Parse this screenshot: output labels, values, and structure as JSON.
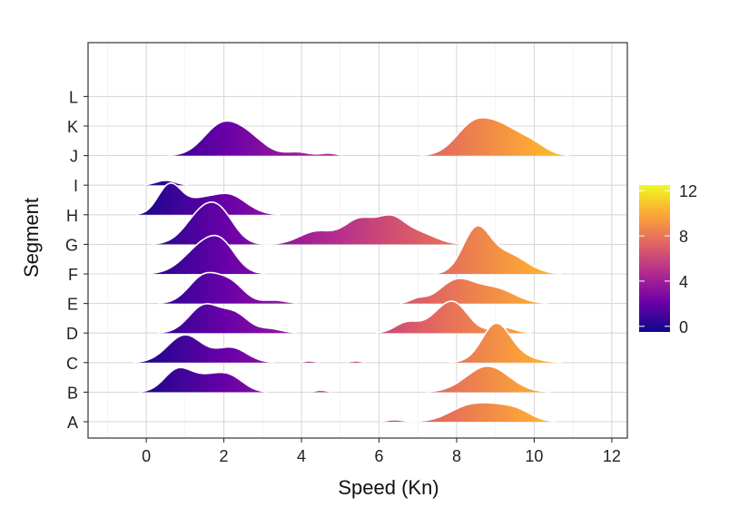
{
  "chart_data": {
    "type": "ridgeline",
    "title": "",
    "xlabel": "Speed (Kn)",
    "ylabel": "Segment",
    "xlim": [
      -1.5,
      12.4
    ],
    "x_ticks": [
      0,
      2,
      4,
      6,
      8,
      10,
      12
    ],
    "grid": true,
    "fill": "gradient by speed (plasma palette)",
    "colorbar": {
      "position": "right",
      "ticks": [
        0,
        4,
        8,
        12
      ],
      "range": [
        -0.5,
        12.5
      ],
      "colors": [
        "#0d0887",
        "#6a00a8",
        "#b12a90",
        "#e16462",
        "#fca636",
        "#f0f921"
      ]
    },
    "outline_color": "#ffffff",
    "segments": [
      "A",
      "B",
      "C",
      "D",
      "E",
      "F",
      "G",
      "H",
      "I",
      "J",
      "K",
      "L"
    ],
    "series": [
      {
        "name": "A",
        "peaks": [
          {
            "center": 6.4,
            "sd": 0.2,
            "height": 0.12
          },
          {
            "center": 8.3,
            "sd": 0.5,
            "height": 0.9
          },
          {
            "center": 9.2,
            "sd": 0.5,
            "height": 0.85
          },
          {
            "center": 9.7,
            "sd": 0.3,
            "height": 0.2
          }
        ]
      },
      {
        "name": "B",
        "peaks": [
          {
            "center": 0.8,
            "sd": 0.35,
            "height": 1.3
          },
          {
            "center": 1.6,
            "sd": 0.45,
            "height": 0.9
          },
          {
            "center": 2.2,
            "sd": 0.35,
            "height": 0.7
          },
          {
            "center": 4.5,
            "sd": 0.15,
            "height": 0.12
          },
          {
            "center": 8.8,
            "sd": 0.55,
            "height": 1.6
          }
        ]
      },
      {
        "name": "C",
        "peaks": [
          {
            "center": 1.0,
            "sd": 0.45,
            "height": 1.7
          },
          {
            "center": 2.2,
            "sd": 0.4,
            "height": 0.9
          },
          {
            "center": 4.2,
            "sd": 0.15,
            "height": 0.1
          },
          {
            "center": 5.4,
            "sd": 0.15,
            "height": 0.1
          },
          {
            "center": 9.0,
            "sd": 0.35,
            "height": 1.9
          },
          {
            "center": 9.3,
            "sd": 0.55,
            "height": 0.6
          }
        ]
      },
      {
        "name": "D",
        "peaks": [
          {
            "center": 1.5,
            "sd": 0.4,
            "height": 1.7
          },
          {
            "center": 2.3,
            "sd": 0.35,
            "height": 1.1
          },
          {
            "center": 3.2,
            "sd": 0.3,
            "height": 0.25
          },
          {
            "center": 6.7,
            "sd": 0.3,
            "height": 0.6
          },
          {
            "center": 7.7,
            "sd": 0.45,
            "height": 1.2
          },
          {
            "center": 8.0,
            "sd": 0.35,
            "height": 0.9
          },
          {
            "center": 9.2,
            "sd": 0.3,
            "height": 0.35
          }
        ]
      },
      {
        "name": "E",
        "peaks": [
          {
            "center": 1.5,
            "sd": 0.4,
            "height": 1.7
          },
          {
            "center": 2.2,
            "sd": 0.35,
            "height": 1.1
          },
          {
            "center": 3.3,
            "sd": 0.3,
            "height": 0.2
          },
          {
            "center": 7.0,
            "sd": 0.2,
            "height": 0.25
          },
          {
            "center": 8.0,
            "sd": 0.45,
            "height": 1.4
          },
          {
            "center": 9.0,
            "sd": 0.5,
            "height": 0.9
          }
        ]
      },
      {
        "name": "F",
        "peaks": [
          {
            "center": 1.5,
            "sd": 0.5,
            "height": 1.8
          },
          {
            "center": 2.0,
            "sd": 0.35,
            "height": 1.0
          },
          {
            "center": 8.5,
            "sd": 0.35,
            "height": 2.6
          },
          {
            "center": 9.3,
            "sd": 0.5,
            "height": 1.2
          }
        ]
      },
      {
        "name": "G",
        "peaks": [
          {
            "center": 1.5,
            "sd": 0.45,
            "height": 2.1
          },
          {
            "center": 2.0,
            "sd": 0.35,
            "height": 1.0
          },
          {
            "center": 4.4,
            "sd": 0.45,
            "height": 0.8
          },
          {
            "center": 5.5,
            "sd": 0.4,
            "height": 1.5
          },
          {
            "center": 6.3,
            "sd": 0.35,
            "height": 1.4
          },
          {
            "center": 7.0,
            "sd": 0.45,
            "height": 0.7
          }
        ]
      },
      {
        "name": "H",
        "peaks": [
          {
            "center": 0.6,
            "sd": 0.3,
            "height": 1.8
          },
          {
            "center": 1.3,
            "sd": 0.4,
            "height": 0.6
          },
          {
            "center": 2.3,
            "sd": 0.45,
            "height": 0.4
          },
          {
            "center": 1.7,
            "sd": 0.4,
            "height": 0.5
          },
          {
            "center": 2.1,
            "sd": 0.3,
            "height": 0.35
          },
          {
            "center": 2.4,
            "sd": 0.35,
            "height": 0.3
          }
        ]
      },
      {
        "name": "I",
        "peaks": [
          {
            "center": 0.5,
            "sd": 0.25,
            "height": 0.3
          }
        ]
      },
      {
        "name": "J",
        "peaks": [
          {
            "center": 1.9,
            "sd": 0.45,
            "height": 1.7
          },
          {
            "center": 2.6,
            "sd": 0.45,
            "height": 1.1
          },
          {
            "center": 3.9,
            "sd": 0.3,
            "height": 0.22
          },
          {
            "center": 4.7,
            "sd": 0.2,
            "height": 0.15
          },
          {
            "center": 8.4,
            "sd": 0.45,
            "height": 1.7
          },
          {
            "center": 9.2,
            "sd": 0.5,
            "height": 1.6
          },
          {
            "center": 10.0,
            "sd": 0.35,
            "height": 0.5
          }
        ]
      },
      {
        "name": "K",
        "peaks": []
      },
      {
        "name": "L",
        "peaks": []
      }
    ]
  }
}
